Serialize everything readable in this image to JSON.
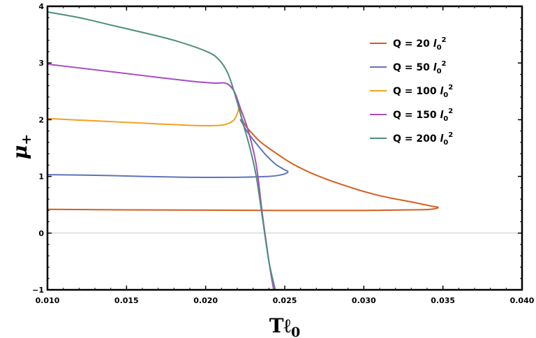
{
  "chart_data": {
    "type": "line",
    "xlabel": "Tℓ",
    "xlabel_sub": "0",
    "ylabel": "μ",
    "ylabel_sub": "+",
    "xlim": [
      0.01,
      0.04
    ],
    "ylim": [
      -1,
      4
    ],
    "xticks": [
      0.01,
      0.015,
      0.02,
      0.025,
      0.03,
      0.035,
      0.04
    ],
    "xtick_labels": [
      "0.010",
      "0.015",
      "0.020",
      "0.025",
      "0.030",
      "0.035",
      "0.040"
    ],
    "yticks": [
      -1,
      0,
      1,
      2,
      3,
      4
    ],
    "ytick_labels": [
      "−1",
      "0",
      "1",
      "2",
      "3",
      "4"
    ],
    "zero_line": true,
    "legend_position": "top-right",
    "series": [
      {
        "name": "Q = 20 l0^2",
        "label_main": "Q = 20 ",
        "label_l": "l",
        "label_sub": "0",
        "label_sup": "2",
        "color": "#D35F1F",
        "points": [
          [
            0.01,
            0.42
          ],
          [
            0.015,
            0.41
          ],
          [
            0.02,
            0.405
          ],
          [
            0.025,
            0.4
          ],
          [
            0.03,
            0.4
          ],
          [
            0.033,
            0.41
          ],
          [
            0.0342,
            0.42
          ],
          [
            0.0347,
            0.45
          ],
          [
            0.0342,
            0.48
          ],
          [
            0.033,
            0.55
          ],
          [
            0.031,
            0.66
          ],
          [
            0.029,
            0.82
          ],
          [
            0.027,
            1.02
          ],
          [
            0.0255,
            1.22
          ],
          [
            0.0245,
            1.4
          ],
          [
            0.0235,
            1.6
          ],
          [
            0.0228,
            1.8
          ],
          [
            0.0224,
            1.95
          ],
          [
            0.0222,
            2.1
          ]
        ]
      },
      {
        "name": "Q = 50 l0^2",
        "label_main": "Q = 50 ",
        "label_l": "l",
        "label_sub": "0",
        "label_sup": "2",
        "color": "#5E74B8",
        "points": [
          [
            0.01,
            1.03
          ],
          [
            0.013,
            1.02
          ],
          [
            0.016,
            1.0
          ],
          [
            0.019,
            0.985
          ],
          [
            0.022,
            0.985
          ],
          [
            0.024,
            1.0
          ],
          [
            0.0248,
            1.03
          ],
          [
            0.0252,
            1.08
          ],
          [
            0.0249,
            1.13
          ],
          [
            0.0244,
            1.22
          ],
          [
            0.0238,
            1.38
          ],
          [
            0.0232,
            1.58
          ],
          [
            0.0226,
            1.8
          ],
          [
            0.0222,
            2.0
          ]
        ]
      },
      {
        "name": "Q = 100 l0^2",
        "label_main": "Q = 100 ",
        "label_l": "l",
        "label_sub": "0",
        "label_sup": "2",
        "color": "#F2A020",
        "points": [
          [
            0.01,
            2.02
          ],
          [
            0.013,
            1.98
          ],
          [
            0.016,
            1.94
          ],
          [
            0.019,
            1.9
          ],
          [
            0.0205,
            1.895
          ],
          [
            0.0213,
            1.92
          ],
          [
            0.0218,
            2.0
          ],
          [
            0.02205,
            2.15
          ],
          [
            0.0221,
            2.25
          ],
          [
            0.02215,
            2.2
          ],
          [
            0.0223,
            2.0
          ],
          [
            0.0225,
            1.8
          ]
        ]
      },
      {
        "name": "Q = 150 l0^2",
        "label_main": "Q = 150 ",
        "label_l": "l",
        "label_sub": "0",
        "label_sup": "2",
        "color": "#A54DC0",
        "points": [
          [
            0.01,
            2.98
          ],
          [
            0.013,
            2.88
          ],
          [
            0.016,
            2.78
          ],
          [
            0.019,
            2.68
          ],
          [
            0.0205,
            2.645
          ],
          [
            0.0213,
            2.64
          ],
          [
            0.0218,
            2.5
          ],
          [
            0.0222,
            2.2
          ],
          [
            0.0227,
            1.8
          ],
          [
            0.0232,
            1.2
          ],
          [
            0.0236,
            0.3
          ],
          [
            0.024,
            -0.5
          ],
          [
            0.0243,
            -1.0
          ]
        ]
      },
      {
        "name": "Q = 200 l0^2",
        "label_main": "Q = 200 ",
        "label_l": "l",
        "label_sub": "0",
        "label_sup": "2",
        "color": "#4C8F7C",
        "points": [
          [
            0.01,
            3.9
          ],
          [
            0.012,
            3.8
          ],
          [
            0.014,
            3.67
          ],
          [
            0.016,
            3.54
          ],
          [
            0.018,
            3.4
          ],
          [
            0.02,
            3.21
          ],
          [
            0.0208,
            3.07
          ],
          [
            0.0214,
            2.82
          ],
          [
            0.0219,
            2.4
          ],
          [
            0.0224,
            1.9
          ],
          [
            0.0228,
            1.5
          ],
          [
            0.0232,
            1.0
          ],
          [
            0.0236,
            0.25
          ],
          [
            0.024,
            -0.5
          ],
          [
            0.0244,
            -1.0
          ]
        ]
      }
    ]
  }
}
